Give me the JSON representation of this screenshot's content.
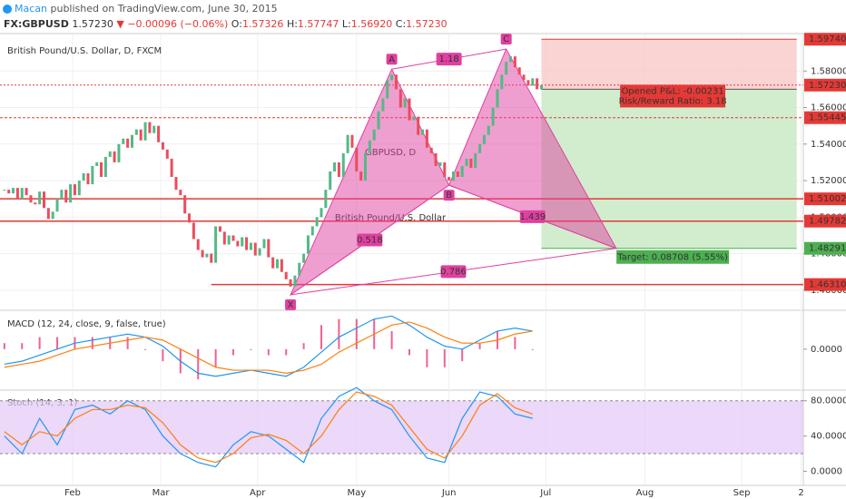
{
  "header": {
    "author": "Macan",
    "published": " published on TradingView.com, June 30, 2015",
    "symbol": "FX:GBPUSD",
    "last": "1.57230",
    "change": "▼ −0.00096 (−0.06%)",
    "ohlc": [
      {
        "key": "O:",
        "value": "1.57326"
      },
      {
        "key": "H:",
        "value": "1.57747"
      },
      {
        "key": "L:",
        "value": "1.56920"
      },
      {
        "key": "C:",
        "value": "1.57230"
      }
    ]
  },
  "chart_data": [
    {
      "type": "candlestick",
      "title": "British Pound/U.S. Dollar, D, FXCM",
      "watermark": "GBPUSD, D",
      "watermark_subtitle": "British Pound/U.S. Dollar",
      "up_color": "#53b987",
      "down_color": "#eb4d5c",
      "closes": [
        1.515,
        1.513,
        1.516,
        1.51,
        1.516,
        1.512,
        1.508,
        1.507,
        1.514,
        1.505,
        1.499,
        1.503,
        1.51,
        1.515,
        1.508,
        1.518,
        1.512,
        1.52,
        1.524,
        1.518,
        1.528,
        1.53,
        1.522,
        1.533,
        1.536,
        1.53,
        1.54,
        1.543,
        1.538,
        1.545,
        1.548,
        1.542,
        1.552,
        1.546,
        1.55,
        1.541,
        1.537,
        1.532,
        1.522,
        1.515,
        1.512,
        1.502,
        1.497,
        1.488,
        1.482,
        1.478,
        1.48,
        1.475,
        1.495,
        1.492,
        1.485,
        1.49,
        1.487,
        1.484,
        1.489,
        1.482,
        1.486,
        1.479,
        1.483,
        1.488,
        1.478,
        1.472,
        1.477,
        1.47,
        1.466,
        1.462,
        1.468,
        1.475,
        1.48,
        1.49,
        1.495,
        1.5,
        1.505,
        1.515,
        1.525,
        1.53,
        1.522,
        1.535,
        1.545,
        1.538,
        1.525,
        1.52,
        1.535,
        1.542,
        1.548,
        1.558,
        1.565,
        1.575,
        1.578,
        1.57,
        1.56,
        1.565,
        1.553,
        1.555,
        1.545,
        1.548,
        1.538,
        1.535,
        1.528,
        1.53,
        1.522,
        1.52,
        1.525,
        1.522,
        1.528,
        1.532,
        1.527,
        1.535,
        1.54,
        1.545,
        1.55,
        1.56,
        1.57,
        1.578,
        1.585,
        1.588,
        1.582,
        1.578,
        1.575,
        1.572,
        1.576,
        1.57,
        1.5723
      ],
      "xlim": [
        -1,
        181.5
      ],
      "xticks": [
        {
          "value": 15.5,
          "label": "Feb"
        },
        {
          "value": 35.5,
          "label": "Mar"
        },
        {
          "value": 57.5,
          "label": "Apr"
        },
        {
          "value": 80,
          "label": "May"
        },
        {
          "value": 101,
          "label": "Jun"
        },
        {
          "value": 123,
          "label": "Jul"
        },
        {
          "value": 145.5,
          "label": "Aug"
        },
        {
          "value": 167.5,
          "label": "Sep"
        },
        {
          "value": 181,
          "label": "2"
        }
      ],
      "ylim": [
        1.45,
        1.6
      ],
      "yticks": [
        {
          "value": 1.46,
          "label": "1.46000"
        },
        {
          "value": 1.48,
          "label": "1.48000"
        },
        {
          "value": 1.5,
          "label": "1.50000"
        },
        {
          "value": 1.52,
          "label": "1.52000"
        },
        {
          "value": 1.54,
          "label": "1.54000"
        },
        {
          "value": 1.56,
          "label": "1.56000"
        },
        {
          "value": 1.58,
          "label": "1.58000"
        }
      ],
      "grid": true,
      "level_color": "#e53935",
      "levels": [
        {
          "value": 1.55445,
          "label": "1.55445",
          "style": "dashed"
        },
        {
          "value": 1.51002,
          "label": "1.51002",
          "style": "solid"
        },
        {
          "value": 1.49782,
          "label": "1.49782",
          "style": "solid"
        },
        {
          "value": 1.4631,
          "label": "1.46310",
          "style": "solid",
          "start_bar": 47
        }
      ],
      "last_price": {
        "value": 1.5723,
        "label": "1.57230"
      },
      "pattern": {
        "color": "#e040a0",
        "points": [
          {
            "label": "X",
            "bar": 65,
            "price": 1.4575
          },
          {
            "label": "A",
            "bar": 88,
            "price": 1.581
          },
          {
            "label": "B",
            "bar": 101,
            "price": 1.5175
          },
          {
            "label": "C",
            "bar": 114,
            "price": 1.592
          },
          {
            "bar": 139,
            "price": 1.48291
          }
        ],
        "ratios": [
          "1.18",
          "0.518",
          "1.439",
          "0.786"
        ]
      },
      "position": {
        "start_bar": 122,
        "end_bar": 180,
        "stop": {
          "value": 1.5974,
          "label": "1.59740"
        },
        "entry": 1.56999,
        "target": {
          "value": 1.48291,
          "label": "1.48291"
        },
        "pnl": "Opened P&L: -0.00231",
        "risk_reward": "Risk/Reward Ratio: 3.18",
        "target_text": "Target: 0.08708 (5.55%)"
      }
    },
    {
      "type": "line",
      "title": "MACD (12, 24, close, 9, false, true)",
      "x": [
        0,
        4,
        8,
        12,
        16,
        20,
        24,
        28,
        32,
        36,
        40,
        44,
        48,
        52,
        56,
        60,
        64,
        68,
        72,
        76,
        80,
        84,
        88,
        92,
        96,
        100,
        104,
        108,
        112,
        116,
        120
      ],
      "histogram_color": "#e91e63",
      "series": [
        {
          "color": "#2196f3",
          "values": [
            -0.005,
            -0.004,
            -0.002,
            0.0,
            0.002,
            0.003,
            0.004,
            0.005,
            0.004,
            0.001,
            -0.004,
            -0.008,
            -0.009,
            -0.008,
            -0.007,
            -0.008,
            -0.009,
            -0.006,
            -0.001,
            0.004,
            0.007,
            0.01,
            0.011,
            0.008,
            0.004,
            0.001,
            0.0,
            0.003,
            0.006,
            0.007,
            0.006
          ]
        },
        {
          "color": "#ff7f0e",
          "values": [
            -0.006,
            -0.005,
            -0.004,
            -0.002,
            0.0,
            0.001,
            0.002,
            0.003,
            0.004,
            0.003,
            0.0,
            -0.003,
            -0.006,
            -0.007,
            -0.007,
            -0.007,
            -0.008,
            -0.007,
            -0.005,
            -0.001,
            0.002,
            0.005,
            0.008,
            0.009,
            0.007,
            0.004,
            0.002,
            0.002,
            0.003,
            0.005,
            0.006
          ]
        }
      ],
      "ylim": [
        -0.013,
        0.012
      ],
      "yticks": [
        {
          "value": 0,
          "label": "0.0000"
        }
      ]
    },
    {
      "type": "line",
      "title": "Stoch (14, 3, 1)",
      "x": [
        0,
        4,
        8,
        12,
        16,
        20,
        24,
        28,
        32,
        36,
        40,
        44,
        48,
        52,
        56,
        60,
        64,
        68,
        72,
        76,
        80,
        84,
        88,
        92,
        96,
        100,
        104,
        108,
        112,
        116,
        120
      ],
      "band": [
        20,
        80
      ],
      "band_color": "#e4c8f5",
      "series": [
        {
          "color": "#2196f3",
          "values": [
            40,
            20,
            60,
            30,
            70,
            75,
            65,
            80,
            70,
            40,
            20,
            10,
            5,
            30,
            45,
            40,
            25,
            10,
            60,
            85,
            95,
            80,
            70,
            40,
            15,
            10,
            60,
            90,
            85,
            65,
            60
          ]
        },
        {
          "color": "#ff7f0e",
          "values": [
            45,
            30,
            45,
            40,
            60,
            70,
            70,
            75,
            72,
            55,
            30,
            15,
            10,
            20,
            38,
            42,
            35,
            20,
            40,
            70,
            90,
            85,
            75,
            50,
            25,
            15,
            40,
            75,
            88,
            72,
            65
          ]
        }
      ],
      "ylim": [
        -15,
        90
      ],
      "yticks": [
        {
          "value": 0,
          "label": "0.0000"
        },
        {
          "value": 40,
          "label": "40.0000"
        },
        {
          "value": 80,
          "label": "80.0000"
        }
      ]
    }
  ]
}
